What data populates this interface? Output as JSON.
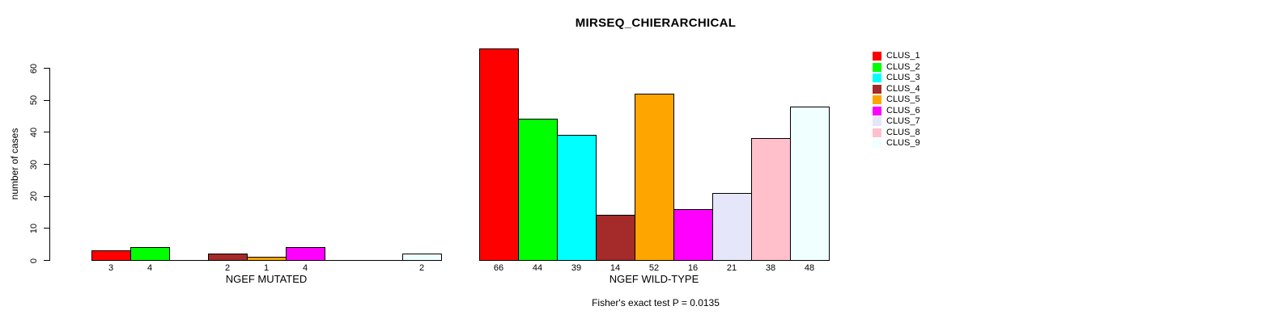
{
  "chart_data": {
    "type": "bar",
    "title": "MIRSEQ_CHIERARCHICAL",
    "ylabel": "number of cases",
    "ylim": [
      0,
      60
    ],
    "yticks": [
      0,
      10,
      20,
      30,
      40,
      50,
      60
    ],
    "grid": false,
    "legend_position": "right",
    "series_labels": [
      "CLUS_1",
      "CLUS_2",
      "CLUS_3",
      "CLUS_4",
      "CLUS_5",
      "CLUS_6",
      "CLUS_7",
      "CLUS_8",
      "CLUS_9"
    ],
    "colors": [
      "#FF0000",
      "#00FF00",
      "#00FFFF",
      "#A52A2A",
      "#FFA500",
      "#FF00FF",
      "#E6E6FA",
      "#FFC0CB",
      "#F0FFFF"
    ],
    "groups": [
      {
        "label": "NGEF MUTATED",
        "values": [
          3,
          4,
          0,
          2,
          1,
          4,
          0,
          0,
          2
        ]
      },
      {
        "label": "NGEF WILD-TYPE",
        "values": [
          66,
          44,
          39,
          14,
          52,
          16,
          21,
          38,
          48
        ]
      }
    ],
    "annotation": "Fisher's exact test P = 0.0135"
  }
}
